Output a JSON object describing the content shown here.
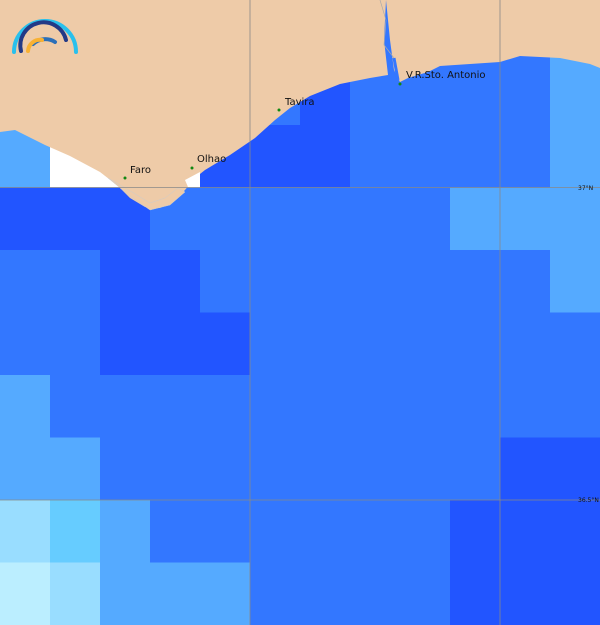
{
  "map": {
    "palette": {
      "A": "#2255ff",
      "B": "#3377ff",
      "C": "#55aaff",
      "D": "#66ccff",
      "E": "#99ddff",
      "F": "#bbeeff",
      "N": "#ffffff"
    },
    "land_color": "#eecba8",
    "grid_rows": [
      "BBBBBBBBBBBC",
      "BBBBBBABBBBC",
      "CNNNAAABBBBC",
      "AAABBBBBBCCC",
      "BBAABBBBBBBC",
      "BBAAABBBBBBB",
      "CBBBBBBBBBBB",
      "CCBBBBBBBBAA",
      "EDCBBBBBBAAA",
      "FECCCBBBBAAA"
    ],
    "places": [
      {
        "name": "Faro"
      },
      {
        "name": "Olhao"
      },
      {
        "name": "Tavira"
      },
      {
        "name": "V.R.Sto. Antonio"
      }
    ],
    "latitude_labels": [
      "37°N",
      "36.5°N"
    ],
    "logo": "wave-arcs-logo"
  }
}
